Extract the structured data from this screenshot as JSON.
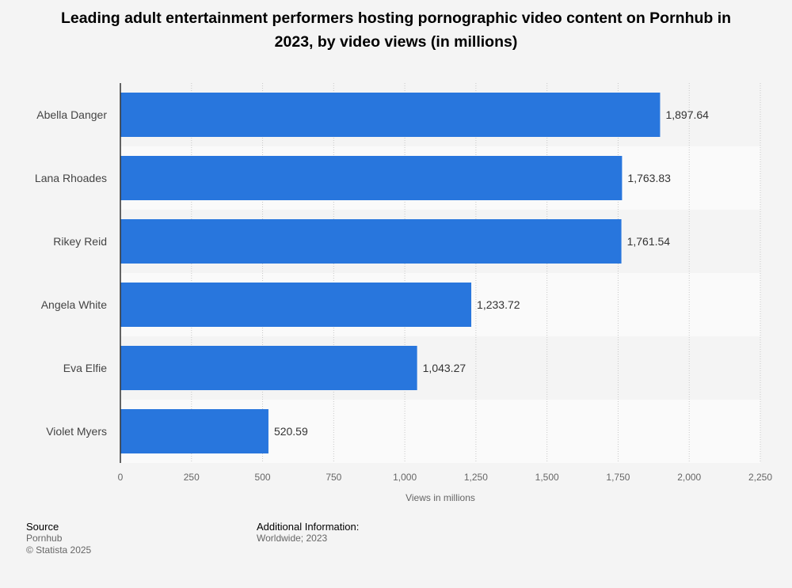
{
  "chart_data": {
    "type": "bar",
    "orientation": "horizontal",
    "title": "Leading adult entertainment performers hosting pornographic video content on Pornhub in 2023, by video views (in millions)",
    "categories": [
      "Abella Danger",
      "Lana Rhoades",
      "Rikey Reid",
      "Angela White",
      "Eva Elfie",
      "Violet Myers"
    ],
    "values": [
      1897.64,
      1763.83,
      1761.54,
      1233.72,
      1043.27,
      520.59
    ],
    "value_labels": [
      "1,897.64",
      "1,763.83",
      "1,761.54",
      "1,233.72",
      "1,043.27",
      "520.59"
    ],
    "xlabel": "Views in millions",
    "ylabel": "",
    "xlim": [
      0,
      2250
    ],
    "ticks": [
      0,
      250,
      500,
      750,
      1000,
      1250,
      1500,
      1750,
      2000,
      2250
    ],
    "tick_labels": [
      "0",
      "250",
      "500",
      "750",
      "1,000",
      "1,250",
      "1,500",
      "1,750",
      "2,000",
      "2,250"
    ],
    "grid": true,
    "bar_color": "#2876dd"
  },
  "footer": {
    "source_heading": "Source",
    "source_name": "Pornhub",
    "copyright": "© Statista 2025",
    "info_heading": "Additional Information:",
    "info_text": "Worldwide; 2023"
  }
}
